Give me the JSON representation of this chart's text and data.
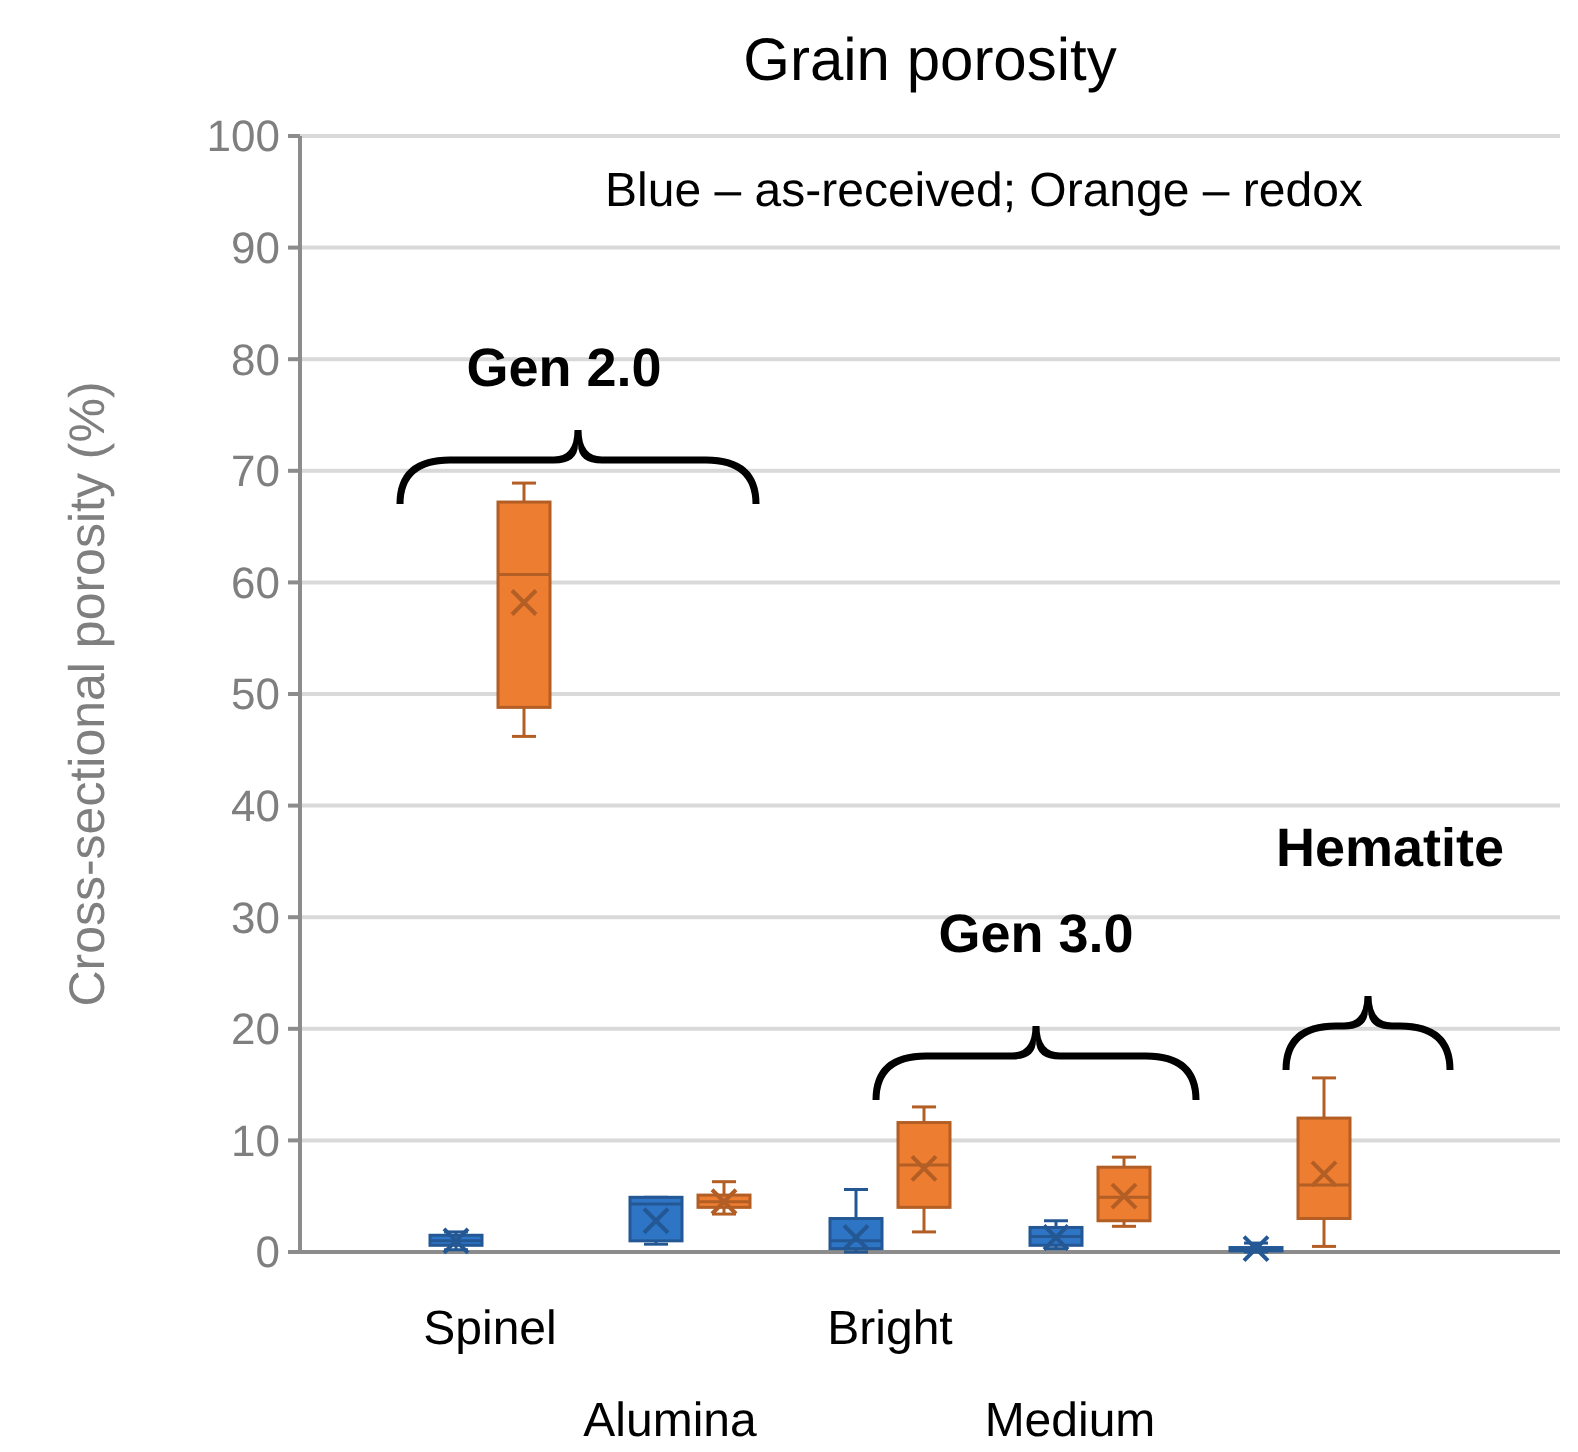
{
  "chart_data": {
    "type": "box",
    "title": "Grain porosity",
    "ylabel": "Cross-sectional porosity (%)",
    "categories": [
      "Spinel",
      "Alumina",
      "Bright",
      "Medium",
      null
    ],
    "ylim": [
      0,
      100
    ],
    "yticks": [
      0,
      10,
      20,
      30,
      40,
      50,
      60,
      70,
      80,
      90,
      100
    ],
    "grid": "y",
    "annotations": [
      "Blue –  as-received; Orange – redox",
      "Gen 2.0",
      "Gen 3.0",
      "Hematite"
    ],
    "series": [
      {
        "color": "#2e75c6",
        "boxes": [
          {
            "low": 0.2,
            "q1": 0.6,
            "median": 1,
            "q3": 1.5,
            "high": 1.8,
            "mean": 1
          },
          {
            "low": 0.7,
            "q1": 1,
            "median": 4.3,
            "q3": 4.9,
            "high": 4.9,
            "mean": 2.8
          },
          {
            "low": 0,
            "q1": 0.3,
            "median": 1,
            "q3": 3,
            "high": 5.6,
            "mean": 1.3
          },
          {
            "low": 0.3,
            "q1": 0.6,
            "median": 1.4,
            "q3": 2.2,
            "high": 2.8,
            "mean": 1.3
          },
          {
            "low": 0,
            "q1": 0.1,
            "median": 0.2,
            "q3": 0.4,
            "high": 0.8,
            "mean": 0.3
          }
        ]
      },
      {
        "color": "#ed7d31",
        "boxes": [
          {
            "low": 46.2,
            "q1": 48.8,
            "median": 60.7,
            "q3": 67.2,
            "high": 68.9,
            "mean": 58.2
          },
          {
            "low": 3.4,
            "q1": 4,
            "median": 4.5,
            "q3": 5.1,
            "high": 6.3,
            "mean": 4.5
          },
          {
            "low": 1.8,
            "q1": 4,
            "median": 7.8,
            "q3": 11.6,
            "high": 13,
            "mean": 7.5
          },
          {
            "low": 2.3,
            "q1": 2.8,
            "median": 4.9,
            "q3": 7.6,
            "high": 8.5,
            "mean": 5
          },
          {
            "low": 0.5,
            "q1": 3,
            "median": 6,
            "q3": 12,
            "high": 15.6,
            "mean": 7
          }
        ]
      }
    ]
  }
}
